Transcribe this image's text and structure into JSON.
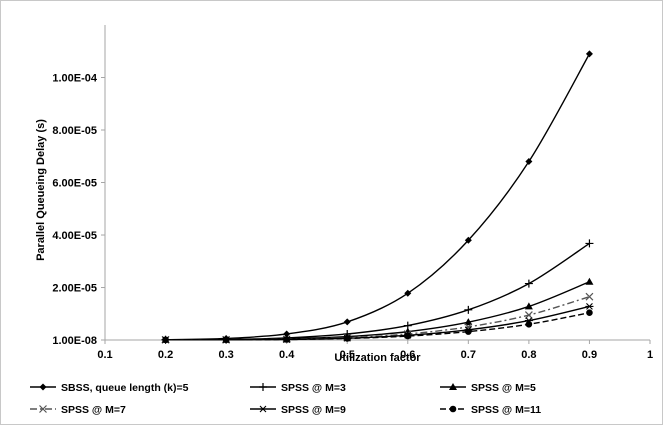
{
  "chart_data": {
    "type": "line",
    "title": "",
    "xlabel": "Utilization factor",
    "ylabel": "Parallel Queueing Delay (s)",
    "xlim": [
      0.1,
      1
    ],
    "ylim": [
      1e-08,
      0.00012
    ],
    "x_ticks": [
      0.1,
      0.2,
      0.3,
      0.4,
      0.5,
      0.6,
      0.7,
      0.8,
      0.9,
      1
    ],
    "x_tick_labels": [
      "0.1",
      "0.2",
      "0.3",
      "0.4",
      "0.5",
      "0.6",
      "0.7",
      "0.8",
      "0.9",
      "1"
    ],
    "y_tick_labels": [
      {
        "value": 1e-08,
        "label": "1.00E-08"
      },
      {
        "value": 2e-05,
        "label": "2.00E-05"
      },
      {
        "value": 4e-05,
        "label": "4.00E-05"
      },
      {
        "value": 6e-05,
        "label": "6.00E-05"
      },
      {
        "value": 8e-05,
        "label": "8.00E-05"
      },
      {
        "value": 0.0001,
        "label": "1.00E-04"
      }
    ],
    "grid": {
      "horizontal": false,
      "vertical": false
    },
    "legend_position": "bottom",
    "x": [
      0.2,
      0.3,
      0.4,
      0.5,
      0.6,
      0.7,
      0.8,
      0.9
    ],
    "series": [
      {
        "name": "SBSS, queue length  (k)=5",
        "marker": "diamond",
        "dash": "solid",
        "values": [
          1e-07,
          6e-07,
          2.3e-06,
          6.9e-06,
          1.78e-05,
          3.8e-05,
          6.8e-05,
          0.000109
        ]
      },
      {
        "name": "SPSS @ M=3",
        "marker": "plus",
        "dash": "solid",
        "values": [
          1e-07,
          2e-07,
          8e-07,
          2.3e-06,
          5.5e-06,
          1.15e-05,
          2.15e-05,
          3.68e-05
        ]
      },
      {
        "name": "SPSS @ M=5",
        "marker": "triangle",
        "dash": "solid",
        "values": [
          1e-07,
          1e-07,
          5e-07,
          1.3e-06,
          3.2e-06,
          6.8e-06,
          1.28e-05,
          2.22e-05
        ]
      },
      {
        "name": "SPSS @ M=7",
        "marker": "x",
        "dash": "dashdot",
        "values": [
          1e-07,
          1e-07,
          3e-07,
          9e-07,
          2.3e-06,
          5e-06,
          9.5e-06,
          1.65e-05
        ]
      },
      {
        "name": "SPSS @ M=9",
        "marker": "star",
        "dash": "solid",
        "values": [
          1e-07,
          1e-07,
          2e-07,
          7e-07,
          1.8e-06,
          3.9e-06,
          7.4e-06,
          1.28e-05
        ]
      },
      {
        "name": "SPSS @ M=11",
        "marker": "circle",
        "dash": "dashed",
        "values": [
          1e-07,
          1e-07,
          2e-07,
          6e-07,
          1.5e-06,
          3.2e-06,
          6e-06,
          1.04e-05
        ]
      }
    ]
  }
}
